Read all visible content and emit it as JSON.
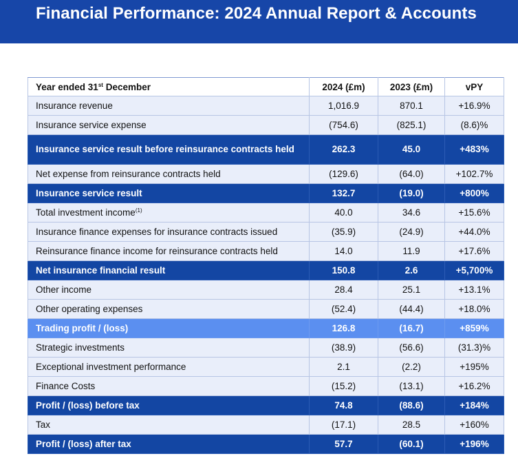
{
  "title": "Financial Performance: 2024 Annual Report & Accounts",
  "table": {
    "headers": [
      "Year ended 31",
      "st",
      " December",
      "2024 (£m)",
      "2023 (£m)",
      "vPY"
    ],
    "rows": [
      {
        "label": "Insurance revenue",
        "sup": "",
        "v2024": "1,016.9",
        "v2023": "870.1",
        "vpy": "+16.9%",
        "style": "normal"
      },
      {
        "label": "Insurance service expense",
        "sup": "",
        "v2024": "(754.6)",
        "v2023": "(825.1)",
        "vpy": "(8.6)%",
        "style": "normal"
      },
      {
        "label": "Insurance service result before reinsurance contracts held",
        "sup": "",
        "v2024": "262.3",
        "v2023": "45.0",
        "vpy": "+483%",
        "style": "dark"
      },
      {
        "label": "Net expense from reinsurance contracts held",
        "sup": "",
        "v2024": "(129.6)",
        "v2023": "(64.0)",
        "vpy": "+102.7%",
        "style": "normal"
      },
      {
        "label": "Insurance service result",
        "sup": "",
        "v2024": "132.7",
        "v2023": "(19.0)",
        "vpy": "+800%",
        "style": "dark"
      },
      {
        "label": "Total investment income",
        "sup": "(1)",
        "v2024": "40.0",
        "v2023": "34.6",
        "vpy": "+15.6%",
        "style": "normal"
      },
      {
        "label": "Insurance finance expenses for insurance contracts issued",
        "sup": "",
        "v2024": "(35.9)",
        "v2023": "(24.9)",
        "vpy": "+44.0%",
        "style": "normal"
      },
      {
        "label": "Reinsurance finance income for reinsurance contracts held",
        "sup": "",
        "v2024": "14.0",
        "v2023": "11.9",
        "vpy": "+17.6%",
        "style": "normal"
      },
      {
        "label": "Net insurance financial result",
        "sup": "",
        "v2024": "150.8",
        "v2023": "2.6",
        "vpy": "+5,700%",
        "style": "dark"
      },
      {
        "label": "Other income",
        "sup": "",
        "v2024": "28.4",
        "v2023": "25.1",
        "vpy": "+13.1%",
        "style": "normal"
      },
      {
        "label": "Other operating expenses",
        "sup": "",
        "v2024": "(52.4)",
        "v2023": "(44.4)",
        "vpy": "+18.0%",
        "style": "normal"
      },
      {
        "label": "Trading profit / (loss)",
        "sup": "",
        "v2024": "126.8",
        "v2023": "(16.7)",
        "vpy": "+859%",
        "style": "light"
      },
      {
        "label": "Strategic investments",
        "sup": "",
        "v2024": "(38.9)",
        "v2023": "(56.6)",
        "vpy": "(31.3)%",
        "style": "normal"
      },
      {
        "label": "Exceptional investment performance",
        "sup": "",
        "v2024": "2.1",
        "v2023": "(2.2)",
        "vpy": "+195%",
        "style": "normal"
      },
      {
        "label": "Finance Costs",
        "sup": "",
        "v2024": "(15.2)",
        "v2023": "(13.1)",
        "vpy": "+16.2%",
        "style": "normal"
      },
      {
        "label": "Profit / (loss) before tax",
        "sup": "",
        "v2024": "74.8",
        "v2023": "(88.6)",
        "vpy": "+184%",
        "style": "dark"
      },
      {
        "label": "Tax",
        "sup": "",
        "v2024": "(17.1)",
        "v2023": "28.5",
        "vpy": "+160%",
        "style": "normal"
      },
      {
        "label": "Profit / (loss) after tax",
        "sup": "",
        "v2024": "57.7",
        "v2023": "(60.1)",
        "vpy": "+196%",
        "style": "dark"
      }
    ]
  }
}
